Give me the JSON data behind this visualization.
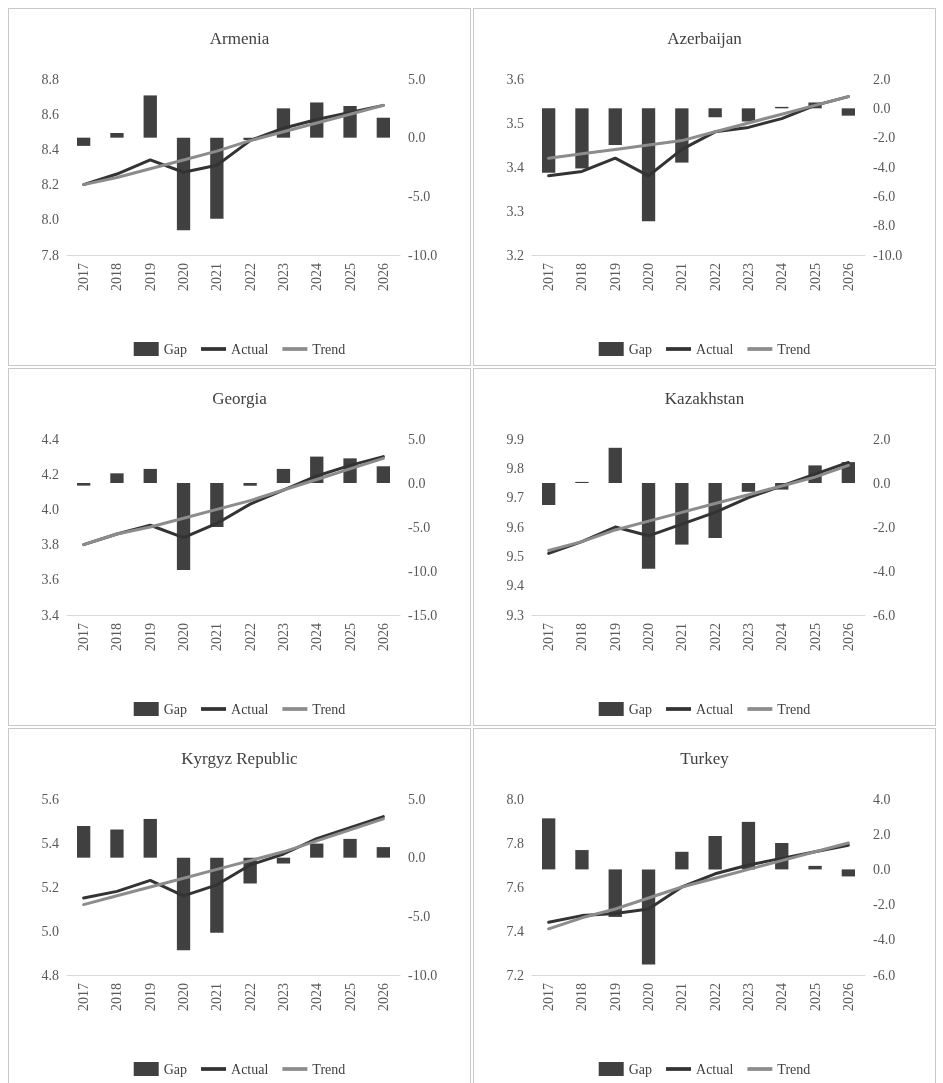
{
  "chart_data": [
    {
      "type": "bar",
      "title": "Armenia",
      "categories": [
        "2017",
        "2018",
        "2019",
        "2020",
        "2021",
        "2022",
        "2023",
        "2024",
        "2025",
        "2026"
      ],
      "legend": "bottom",
      "marker": "none",
      "series": [
        {
          "name": "Gap",
          "axis": "y2",
          "color": "#404040",
          "values": [
            -0.7,
            0.4,
            3.6,
            -7.9,
            -6.9,
            -0.2,
            2.5,
            3.0,
            2.7,
            1.7
          ]
        },
        {
          "name": "Actual",
          "type": "line",
          "color": "#333333",
          "values": [
            8.2,
            8.26,
            8.34,
            8.27,
            8.31,
            8.45,
            8.52,
            8.57,
            8.61,
            8.65
          ]
        },
        {
          "name": "Trend",
          "type": "line",
          "color": "#8c8c8c",
          "values": [
            8.2,
            8.24,
            8.29,
            8.34,
            8.39,
            8.45,
            8.5,
            8.55,
            8.6,
            8.65
          ]
        }
      ],
      "ylim": [
        7.8,
        8.8
      ],
      "yticks": [
        7.8,
        {
          "value": 8,
          "label": "8.0"
        },
        8.2,
        8.4,
        8.6,
        8.8
      ],
      "y2lim": [
        -10,
        5
      ],
      "y2ticks": [
        {
          "value": -10,
          "label": "-10.0"
        },
        {
          "value": -5,
          "label": "-5.0"
        },
        {
          "value": 0,
          "label": "0.0"
        },
        {
          "value": 5,
          "label": "5.0"
        }
      ]
    },
    {
      "type": "bar",
      "title": "Azerbaijan",
      "categories": [
        "2017",
        "2018",
        "2019",
        "2020",
        "2021",
        "2022",
        "2023",
        "2024",
        "2025",
        "2026"
      ],
      "legend": "bottom",
      "marker": "none",
      "series": [
        {
          "name": "Gap",
          "axis": "y2",
          "color": "#404040",
          "values": [
            -4.4,
            -4.1,
            -2.5,
            -7.7,
            -3.7,
            -0.6,
            -0.9,
            0.1,
            0.4,
            -0.5
          ]
        },
        {
          "name": "Actual",
          "type": "line",
          "color": "#333333",
          "values": [
            3.38,
            3.39,
            3.42,
            3.38,
            3.44,
            3.48,
            3.49,
            3.51,
            3.54,
            3.56
          ]
        },
        {
          "name": "Trend",
          "type": "line",
          "color": "#8c8c8c",
          "values": [
            3.42,
            3.43,
            3.44,
            3.45,
            3.46,
            3.48,
            3.5,
            3.52,
            3.54,
            3.56
          ]
        }
      ],
      "ylim": [
        3.2,
        3.6
      ],
      "yticks": [
        3.2,
        3.3,
        3.4,
        3.5,
        3.6
      ],
      "y2lim": [
        -10,
        2
      ],
      "y2ticks": [
        {
          "value": -10,
          "label": "-10.0"
        },
        {
          "value": -8,
          "label": "-8.0"
        },
        {
          "value": -6,
          "label": "-6.0"
        },
        {
          "value": -4,
          "label": "-4.0"
        },
        {
          "value": -2,
          "label": "-2.0"
        },
        {
          "value": 0,
          "label": "0.0"
        },
        {
          "value": 2,
          "label": "2.0"
        }
      ]
    },
    {
      "type": "bar",
      "title": "Georgia",
      "categories": [
        "2017",
        "2018",
        "2019",
        "2020",
        "2021",
        "2022",
        "2023",
        "2024",
        "2025",
        "2026"
      ],
      "legend": "bottom",
      "marker": "none",
      "series": [
        {
          "name": "Gap",
          "axis": "y2",
          "color": "#404040",
          "values": [
            -0.3,
            1.1,
            1.6,
            -9.9,
            -5.0,
            -0.3,
            1.6,
            3.0,
            2.8,
            1.9
          ]
        },
        {
          "name": "Actual",
          "type": "line",
          "color": "#333333",
          "values": [
            3.8,
            3.86,
            3.91,
            3.84,
            3.92,
            4.03,
            4.11,
            4.19,
            4.25,
            4.3
          ]
        },
        {
          "name": "Trend",
          "type": "line",
          "color": "#8c8c8c",
          "values": [
            3.8,
            3.86,
            3.9,
            3.95,
            4.0,
            4.05,
            4.11,
            4.17,
            4.23,
            4.29
          ]
        }
      ],
      "ylim": [
        3.4,
        4.4
      ],
      "yticks": [
        3.4,
        3.6,
        3.8,
        {
          "value": 4,
          "label": "4.0"
        },
        4.2,
        4.4
      ],
      "y2lim": [
        -15,
        5
      ],
      "y2ticks": [
        {
          "value": -15,
          "label": "-15.0"
        },
        {
          "value": -10,
          "label": "-10.0"
        },
        {
          "value": -5,
          "label": "-5.0"
        },
        {
          "value": 0,
          "label": "0.0"
        },
        {
          "value": 5,
          "label": "5.0"
        }
      ]
    },
    {
      "type": "bar",
      "title": "Kazakhstan",
      "categories": [
        "2017",
        "2018",
        "2019",
        "2020",
        "2021",
        "2022",
        "2023",
        "2024",
        "2025",
        "2026"
      ],
      "legend": "bottom",
      "marker": "none",
      "series": [
        {
          "name": "Gap",
          "axis": "y2",
          "color": "#404040",
          "values": [
            -1.0,
            0.05,
            1.6,
            -3.9,
            -2.8,
            -2.5,
            -0.4,
            -0.3,
            0.8,
            0.95
          ]
        },
        {
          "name": "Actual",
          "type": "line",
          "color": "#333333",
          "values": [
            9.51,
            9.55,
            9.6,
            9.57,
            9.61,
            9.65,
            9.7,
            9.74,
            9.78,
            9.82
          ]
        },
        {
          "name": "Trend",
          "type": "line",
          "color": "#8c8c8c",
          "values": [
            9.52,
            9.55,
            9.59,
            9.62,
            9.65,
            9.68,
            9.71,
            9.74,
            9.77,
            9.81
          ]
        }
      ],
      "ylim": [
        9.3,
        9.9
      ],
      "yticks": [
        9.3,
        9.4,
        9.5,
        9.6,
        9.7,
        9.8,
        9.9
      ],
      "y2lim": [
        -6,
        2
      ],
      "y2ticks": [
        {
          "value": -6,
          "label": "-6.0"
        },
        {
          "value": -4,
          "label": "-4.0"
        },
        {
          "value": -2,
          "label": "-2.0"
        },
        {
          "value": 0,
          "label": "0.0"
        },
        {
          "value": 2,
          "label": "2.0"
        }
      ]
    },
    {
      "type": "bar",
      "title": "Kyrgyz Republic",
      "categories": [
        "2017",
        "2018",
        "2019",
        "2020",
        "2021",
        "2022",
        "2023",
        "2024",
        "2025",
        "2026"
      ],
      "legend": "bottom",
      "marker": "none",
      "series": [
        {
          "name": "Gap",
          "axis": "y2",
          "color": "#404040",
          "values": [
            2.7,
            2.4,
            3.3,
            -7.9,
            -6.4,
            -2.2,
            -0.5,
            1.2,
            1.6,
            0.9
          ]
        },
        {
          "name": "Actual",
          "type": "line",
          "color": "#333333",
          "values": [
            5.15,
            5.18,
            5.23,
            5.16,
            5.21,
            5.3,
            5.35,
            5.42,
            5.47,
            5.52
          ]
        },
        {
          "name": "Trend",
          "type": "line",
          "color": "#8c8c8c",
          "values": [
            5.12,
            5.16,
            5.2,
            5.24,
            5.28,
            5.32,
            5.36,
            5.41,
            5.46,
            5.51
          ]
        }
      ],
      "ylim": [
        4.8,
        5.6
      ],
      "yticks": [
        4.8,
        {
          "value": 5,
          "label": "5.0"
        },
        5.2,
        5.4,
        5.6
      ],
      "y2lim": [
        -10,
        5
      ],
      "y2ticks": [
        {
          "value": -10,
          "label": "-10.0"
        },
        {
          "value": -5,
          "label": "-5.0"
        },
        {
          "value": 0,
          "label": "0.0"
        },
        {
          "value": 5,
          "label": "5.0"
        }
      ]
    },
    {
      "type": "bar",
      "title": "Turkey",
      "categories": [
        "2017",
        "2018",
        "2019",
        "2020",
        "2021",
        "2022",
        "2023",
        "2024",
        "2025",
        "2026"
      ],
      "legend": "bottom",
      "marker": "none",
      "series": [
        {
          "name": "Gap",
          "axis": "y2",
          "color": "#404040",
          "values": [
            2.9,
            1.1,
            -2.7,
            -5.4,
            1.0,
            1.9,
            2.7,
            1.5,
            0.2,
            -0.4
          ]
        },
        {
          "name": "Actual",
          "type": "line",
          "color": "#333333",
          "values": [
            7.44,
            7.47,
            7.48,
            7.5,
            7.6,
            7.66,
            7.7,
            7.73,
            7.76,
            7.79
          ]
        },
        {
          "name": "Trend",
          "type": "line",
          "color": "#8c8c8c",
          "values": [
            7.41,
            7.46,
            7.5,
            7.55,
            7.6,
            7.64,
            7.68,
            7.72,
            7.76,
            7.8
          ]
        }
      ],
      "ylim": [
        7.2,
        8.0
      ],
      "yticks": [
        7.2,
        7.4,
        7.6,
        7.8,
        {
          "value": 8,
          "label": "8.0"
        }
      ],
      "y2lim": [
        -6,
        4
      ],
      "y2ticks": [
        {
          "value": -6,
          "label": "-6.0"
        },
        {
          "value": -4,
          "label": "-4.0"
        },
        {
          "value": -2,
          "label": "-2.0"
        },
        {
          "value": 0,
          "label": "0.0"
        },
        {
          "value": 2,
          "label": "2.0"
        },
        {
          "value": 4,
          "label": "4.0"
        }
      ]
    }
  ]
}
